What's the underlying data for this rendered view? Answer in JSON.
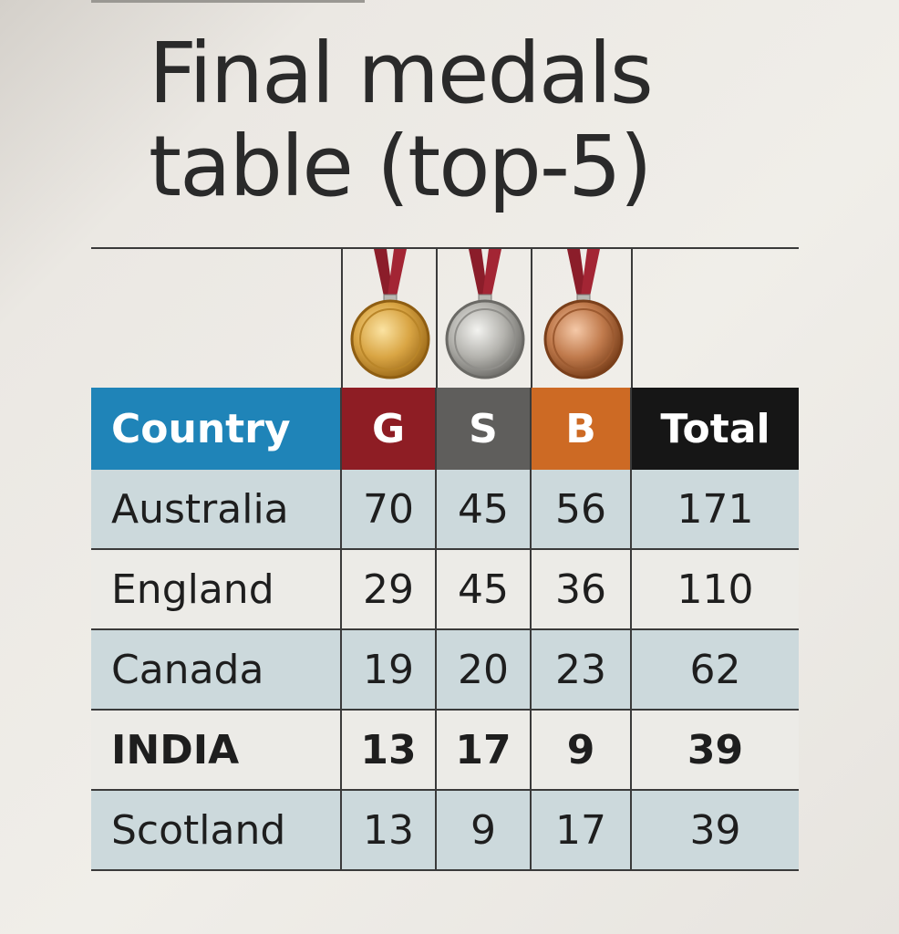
{
  "title_line1": "Final medals",
  "title_line2": "table (top-5)",
  "medal_icons": [
    "gold-medal-icon",
    "silver-medal-icon",
    "bronze-medal-icon"
  ],
  "colors": {
    "country_header": "#1f84b8",
    "gold_header": "#8e1d24",
    "silver_header": "#5f5e5c",
    "bronze_header": "#cd6a24",
    "total_header": "#161616",
    "row_shade": "#ccd9dc"
  },
  "headers": {
    "country": "Country",
    "gold": "G",
    "silver": "S",
    "bronze": "B",
    "total": "Total"
  },
  "rows": [
    {
      "country": "Australia",
      "gold": "70",
      "silver": "45",
      "bronze": "56",
      "total": "171"
    },
    {
      "country": "England",
      "gold": "29",
      "silver": "45",
      "bronze": "36",
      "total": "110"
    },
    {
      "country": "Canada",
      "gold": "19",
      "silver": "20",
      "bronze": "23",
      "total": "62"
    },
    {
      "country": "INDIA",
      "gold": "13",
      "silver": "17",
      "bronze": "9",
      "total": "39"
    },
    {
      "country": "Scotland",
      "gold": "13",
      "silver": "9",
      "bronze": "17",
      "total": "39"
    }
  ]
}
